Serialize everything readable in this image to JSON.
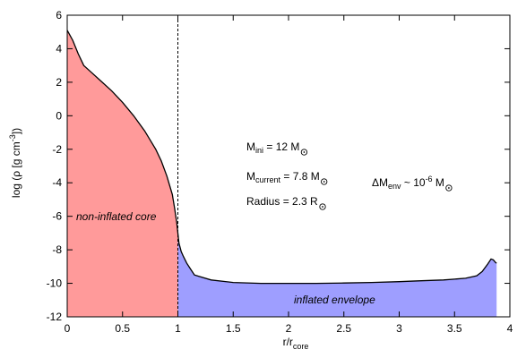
{
  "chart_data": {
    "type": "area",
    "xlabel": {
      "main": "r/r",
      "sub": "core"
    },
    "ylabel": {
      "pre": "log  (ρ [g cm",
      "sup": "-3",
      "post": "])"
    },
    "xlim": [
      0,
      4
    ],
    "ylim": [
      -12,
      6
    ],
    "x_ticks": [
      "0",
      "0.5",
      "1",
      "1.5",
      "2",
      "2.5",
      "3",
      "3.5",
      "4"
    ],
    "y_ticks": [
      "6",
      "4",
      "2",
      "0",
      "-2",
      "-4",
      "-6",
      "-8",
      "-10",
      "-12"
    ],
    "grid": false,
    "core_boundary_x": 1.0,
    "colors": {
      "core_fill": "#ff9a9a",
      "envelope_fill": "#9e9eff",
      "line": "#000000"
    },
    "series": [
      {
        "x": [
          0,
          0.05,
          0.1,
          0.15,
          0.2,
          0.3,
          0.4,
          0.5,
          0.6,
          0.7,
          0.8,
          0.85,
          0.9,
          0.95,
          0.97,
          0.99,
          1.0,
          1.01,
          1.03,
          1.05,
          1.08,
          1.12,
          1.15,
          1.2,
          1.3,
          1.5,
          1.75,
          2.0,
          2.25,
          2.5,
          2.75,
          3.0,
          3.2,
          3.4,
          3.6,
          3.7,
          3.75,
          3.8,
          3.83,
          3.85,
          3.87,
          3.88
        ],
        "y": [
          5.1,
          4.5,
          3.7,
          3.0,
          2.7,
          2.1,
          1.5,
          0.8,
          0.0,
          -0.9,
          -2.0,
          -2.7,
          -3.6,
          -4.7,
          -5.5,
          -6.4,
          -7.0,
          -7.6,
          -8.1,
          -8.4,
          -8.8,
          -9.2,
          -9.5,
          -9.6,
          -9.8,
          -9.95,
          -10.0,
          -10.0,
          -10.0,
          -9.98,
          -9.95,
          -9.9,
          -9.85,
          -9.8,
          -9.7,
          -9.55,
          -9.3,
          -8.85,
          -8.55,
          -8.6,
          -8.75,
          -8.8
        ]
      }
    ],
    "annotations": {
      "mini": {
        "pre": "M",
        "sub": "ini",
        "post": " = 12 M"
      },
      "mcurrent": {
        "pre": "M",
        "sub": "current",
        "post": " = 7.8 M"
      },
      "radius": {
        "pre": "Radius = 2.3 R"
      },
      "menv": {
        "pre": "ΔM",
        "sub": "env",
        "mid": " ~ 10",
        "sup": "-6",
        "post": " M"
      },
      "core_label": "non-inflated core",
      "envelope_label": "inflated envelope"
    }
  }
}
